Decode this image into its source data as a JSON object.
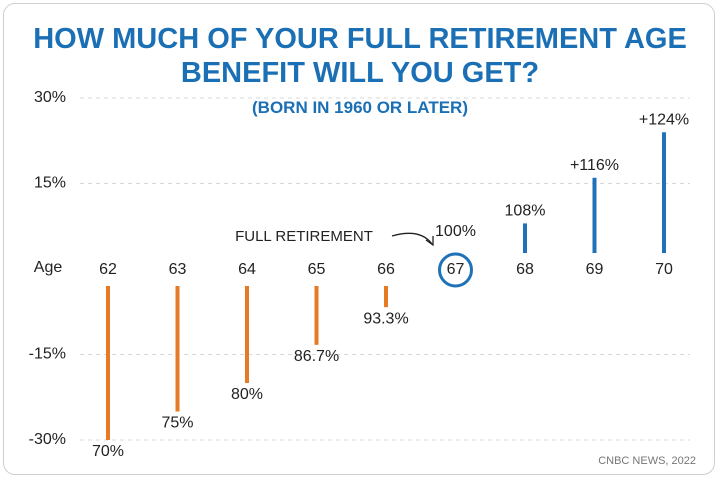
{
  "chart_data": {
    "type": "lollipop",
    "title": "HOW MUCH OF YOUR FULL RETIREMENT AGE BENEFIT WILL YOU GET?",
    "subtitle": "(BORN IN 1960 OR LATER)",
    "x_label": "Age",
    "categories": [
      "62",
      "63",
      "64",
      "65",
      "66",
      "67",
      "68",
      "69",
      "70"
    ],
    "values": [
      -30,
      -25,
      -20,
      -13.3,
      -6.7,
      0,
      8,
      16,
      24
    ],
    "value_labels": [
      "70%",
      "75%",
      "80%",
      "86.7%",
      "93.3%",
      "100%",
      "108%",
      "+116%",
      "+124%"
    ],
    "color_below": "#e57b25",
    "color_above": "#1f72b8",
    "ylim": [
      -30,
      30
    ],
    "yticks": [
      {
        "value": 30,
        "label": "30%"
      },
      {
        "value": 15,
        "label": "15%"
      },
      {
        "value": -15,
        "label": "-15%"
      },
      {
        "value": -30,
        "label": "-30%"
      }
    ],
    "grid": true,
    "annotation": "FULL RETIREMENT",
    "source": "CNBC NEWS, 2022"
  }
}
